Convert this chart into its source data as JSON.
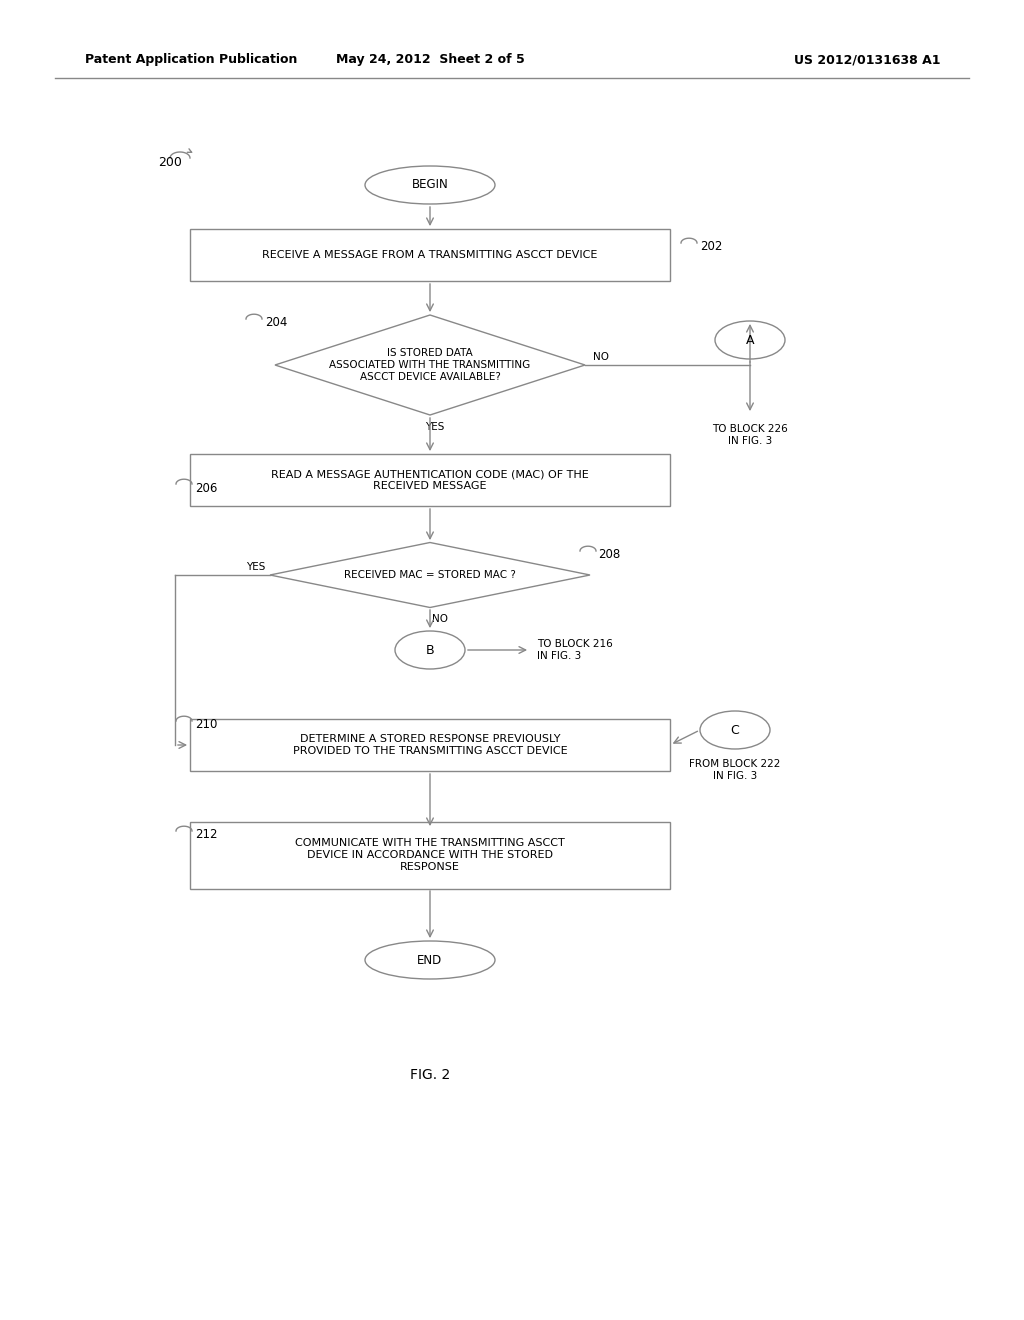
{
  "bg_color": "#ffffff",
  "line_color": "#888888",
  "header_left": "Patent Application Publication",
  "header_mid": "May 24, 2012  Sheet 2 of 5",
  "header_right": "US 2012/0131638 A1",
  "fig_label": "FIG. 2",
  "diagram_label": "200"
}
